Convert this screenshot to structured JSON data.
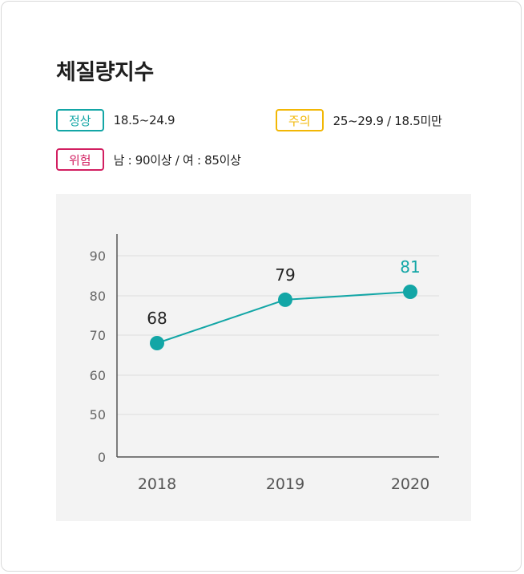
{
  "title": "체질량지수",
  "legend": {
    "normal": {
      "label": "정상",
      "range": "18.5~24.9"
    },
    "caution": {
      "label": "주의",
      "range": "25~29.9 / 18.5미만"
    },
    "danger": {
      "label": "위험",
      "range": "남 : 90이상 / 여 : 85이상"
    }
  },
  "colors": {
    "accent": "#13a6a6",
    "caution": "#f2b705",
    "danger": "#d21f61",
    "chart_bg": "#f3f3f3"
  },
  "chart_data": {
    "type": "line",
    "categories": [
      "2018",
      "2019",
      "2020"
    ],
    "values": [
      68,
      79,
      81
    ],
    "data_labels": [
      "68",
      "79",
      "81"
    ],
    "highlight_index": 2,
    "y_ticks": [
      "0",
      "50",
      "60",
      "70",
      "80",
      "90"
    ],
    "grid": true,
    "xlabel": "",
    "ylabel": ""
  }
}
